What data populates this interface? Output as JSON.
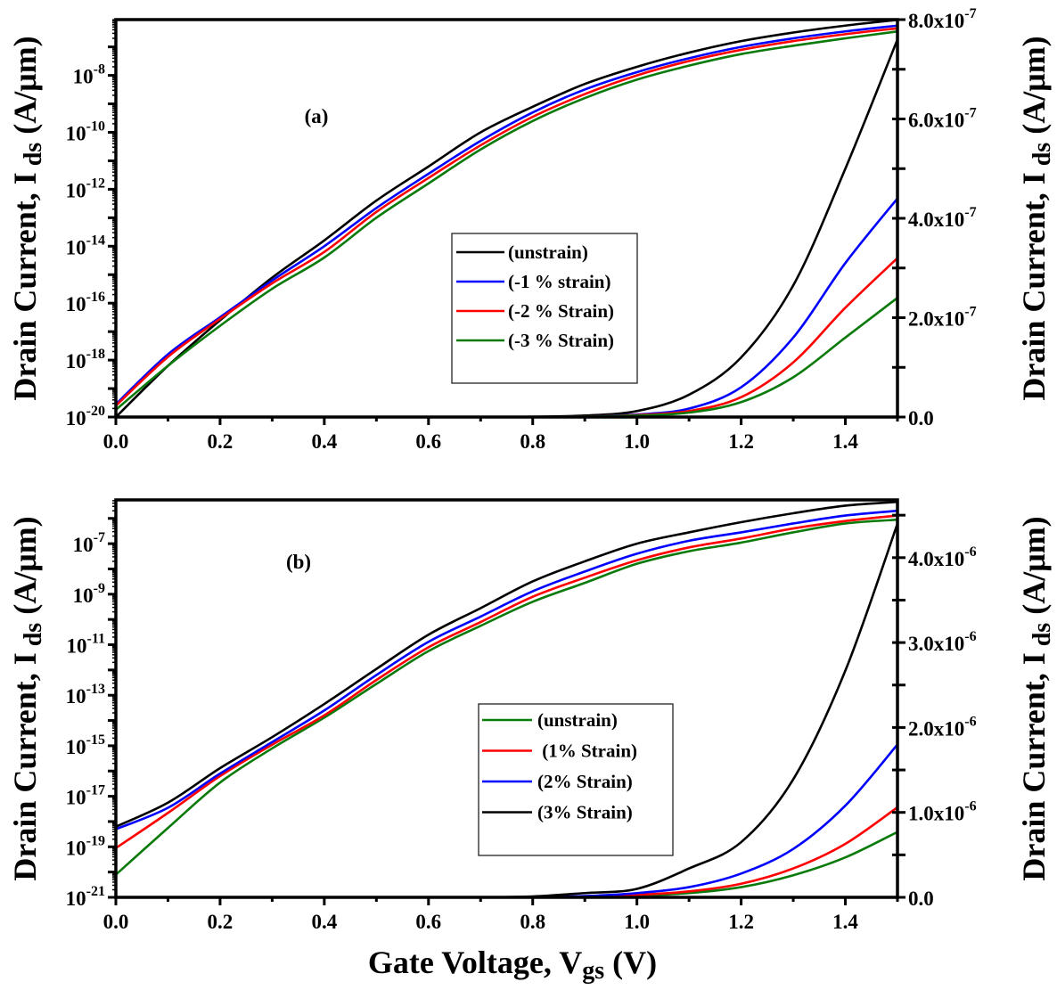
{
  "chart_data": [
    {
      "type": "line",
      "panel_label": "(a)",
      "x": [
        0.0,
        0.1,
        0.2,
        0.3,
        0.4,
        0.5,
        0.6,
        0.7,
        0.8,
        0.9,
        1.0,
        1.1,
        1.2,
        1.3,
        1.4,
        1.5
      ],
      "xlim": [
        0,
        1.5
      ],
      "xticks": [
        "0.0",
        "0.2",
        "0.4",
        "0.6",
        "0.8",
        "1.0",
        "1.2",
        "1.4"
      ],
      "xlabel": "",
      "ylabel_left": {
        "main": "Drain Current, I",
        "sub": "ds",
        "unit": " (A/μm)"
      },
      "ylabel_right": {
        "main": "Drain Current, I",
        "sub": "ds",
        "unit": " (A/μm)"
      },
      "yscale_left": "log",
      "ylim_left": [
        1e-20,
        9.1e-07
      ],
      "yticks_left": [
        1e-20,
        1e-18,
        1e-16,
        1e-14,
        1e-12,
        1e-10,
        1e-08
      ],
      "yscale_right": "linear",
      "ylim_right": [
        0,
        8e-07
      ],
      "yticks_right": [
        {
          "value": 0,
          "label": "0.0"
        },
        {
          "value": 2e-07,
          "label": "2.0x10^-7"
        },
        {
          "value": 4e-07,
          "label": "4.0x10^-7"
        },
        {
          "value": 6e-07,
          "label": "6.0x10^-7"
        },
        {
          "value": 8e-07,
          "label": "8.0x10^-7"
        }
      ],
      "grid": false,
      "legend_position": "center",
      "series": [
        {
          "name": "(unstrain)",
          "color": "#000000",
          "log_values": [
            1e-20,
            6.3e-19,
            2.5e-17,
            7.9e-16,
            1.6e-14,
            4e-13,
            6.3e-12,
            1e-10,
            7.9e-10,
            5e-09,
            2e-08,
            6.3e-08,
            1.6e-07,
            3.2e-07,
            5.6e-07,
            8.9e-07
          ],
          "linear_values": [
            0,
            0,
            0,
            0,
            0,
            0,
            0,
            0,
            5e-10,
            3e-09,
            1.2e-08,
            4.5e-08,
            1.2e-07,
            2.65e-07,
            5e-07,
            7.6e-07
          ]
        },
        {
          "name": "(-1 % strain)",
          "color": "#0000ff",
          "log_values": [
            2.8e-20,
            1.6e-18,
            3.2e-17,
            6.3e-16,
            1e-14,
            2.2e-13,
            3.5e-12,
            5e-11,
            5e-10,
            3.2e-09,
            1.3e-08,
            4e-08,
            1e-07,
            2e-07,
            3.5e-07,
            5.6e-07
          ],
          "linear_values": [
            0,
            0,
            0,
            0,
            0,
            0,
            0,
            0,
            0,
            1e-09,
            5e-09,
            1.7e-08,
            6e-08,
            1.6e-07,
            3.1e-07,
            4.4e-07
          ]
        },
        {
          "name": "(-2 % Strain)",
          "color": "#ff0000",
          "log_values": [
            2.5e-20,
            1.3e-18,
            2.8e-17,
            5e-16,
            6.3e-15,
            1.6e-13,
            2.5e-12,
            3.5e-11,
            3.5e-10,
            2.2e-09,
            1e-08,
            3.2e-08,
            7.9e-08,
            1.6e-07,
            2.8e-07,
            4.5e-07
          ],
          "linear_values": [
            0,
            0,
            0,
            0,
            0,
            0,
            0,
            0,
            0,
            1e-09,
            4e-09,
            1.2e-08,
            4e-08,
            1.1e-07,
            2.2e-07,
            3.2e-07
          ]
        },
        {
          "name": "(-3 % Strain)",
          "color": "#0a7a0a",
          "log_values": [
            1.8e-20,
            6.3e-19,
            1.6e-17,
            3.2e-16,
            4e-15,
            1e-13,
            1.6e-12,
            2.5e-11,
            2.5e-10,
            1.6e-09,
            7.1e-09,
            2.2e-08,
            5.6e-08,
            1.1e-07,
            2e-07,
            3.5e-07
          ],
          "linear_values": [
            0,
            0,
            0,
            0,
            0,
            0,
            0,
            0,
            0,
            1e-09,
            3e-09,
            9e-09,
            3e-08,
            8e-08,
            1.6e-07,
            2.4e-07
          ]
        }
      ]
    },
    {
      "type": "line",
      "panel_label": "(b)",
      "x": [
        0.0,
        0.1,
        0.2,
        0.3,
        0.4,
        0.5,
        0.6,
        0.7,
        0.8,
        0.9,
        1.0,
        1.1,
        1.2,
        1.3,
        1.4,
        1.5
      ],
      "xlim": [
        0,
        1.5
      ],
      "xticks": [
        "0.0",
        "0.2",
        "0.4",
        "0.6",
        "0.8",
        "1.0",
        "1.2",
        "1.4"
      ],
      "xlabel": {
        "main": "Gate Voltage, V",
        "sub": "gs",
        "unit": " (V)"
      },
      "ylabel_left": {
        "main": "Drain Current, I",
        "sub": "ds",
        "unit": " (A/μm)"
      },
      "ylabel_right": {
        "main": "Drain Current, I",
        "sub": "ds",
        "unit": " (A/μm)"
      },
      "yscale_left": "log",
      "ylim_left": [
        1e-21,
        5.4e-06
      ],
      "yticks_left": [
        1e-21,
        1e-19,
        1e-17,
        1e-15,
        1e-13,
        1e-11,
        1e-09,
        1e-07
      ],
      "yscale_right": "linear",
      "ylim_right": [
        0,
        4.68e-06
      ],
      "yticks_right": [
        {
          "value": 0,
          "label": "0.0"
        },
        {
          "value": 1e-06,
          "label": "1.0x10^-6"
        },
        {
          "value": 2e-06,
          "label": "2.0x10^-6"
        },
        {
          "value": 3e-06,
          "label": "3.0x10^-6"
        },
        {
          "value": 4e-06,
          "label": "4.0x10^-6"
        }
      ],
      "grid": false,
      "legend_position": "center",
      "series": [
        {
          "name": "(unstrain)",
          "color": "#0a7a0a",
          "log_values": [
            7.9e-21,
            5.6e-19,
            3.5e-17,
            7.9e-16,
            1.3e-14,
            2.8e-13,
            5.6e-12,
            5.6e-11,
            5e-10,
            2.8e-09,
            1.6e-08,
            5e-08,
            1.1e-07,
            2.8e-07,
            6.3e-07,
            8.9e-07
          ],
          "linear_values": [
            0,
            0,
            0,
            0,
            0,
            0,
            0,
            0,
            0,
            0,
            2e-08,
            5e-08,
            1.2e-07,
            2.6e-07,
            4.7e-07,
            7.7e-07
          ]
        },
        {
          "name": " (1% Strain)",
          "color": "#ff0000",
          "log_values": [
            8.9e-20,
            2.2e-18,
            6.3e-17,
            1.1e-15,
            1.6e-14,
            4e-13,
            7.9e-12,
            7.9e-11,
            7.9e-10,
            4.5e-09,
            2.2e-08,
            7.1e-08,
            1.6e-07,
            4e-07,
            7.9e-07,
            1.3e-06
          ],
          "linear_values": [
            0,
            0,
            0,
            0,
            0,
            0,
            0,
            0,
            0,
            1e-08,
            3e-08,
            7e-08,
            1.6e-07,
            3.4e-07,
            6.3e-07,
            1.06e-06
          ]
        },
        {
          "name": "(2% Strain)",
          "color": "#0000ff",
          "log_values": [
            5e-19,
            3.5e-18,
            7.9e-17,
            1.4e-15,
            2.5e-14,
            6.3e-13,
            1.3e-11,
            1.3e-10,
            1.3e-09,
            7.9e-09,
            4e-08,
            1.3e-07,
            2.8e-07,
            6.3e-07,
            1.3e-06,
            2e-06
          ],
          "linear_values": [
            0,
            0,
            0,
            0,
            0,
            0,
            0,
            0,
            0,
            1.5e-08,
            5e-08,
            1.2e-07,
            2.8e-07,
            5.7e-07,
            1.08e-06,
            1.8e-06
          ]
        },
        {
          "name": "(3% Strain)",
          "color": "#000000",
          "log_values": [
            6.3e-19,
            5.6e-18,
            1.3e-16,
            2.2e-15,
            4.5e-14,
            1.1e-12,
            2.5e-11,
            2.8e-10,
            3.2e-09,
            2e-08,
            1e-07,
            2.8e-07,
            7.1e-07,
            1.6e-06,
            3.2e-06,
            4.5e-06
          ],
          "linear_values": [
            0,
            0,
            0,
            0,
            0,
            0,
            0,
            0,
            1e-08,
            5e-08,
            1e-07,
            3.4e-07,
            6.5e-07,
            1.39e-06,
            2.67e-06,
            4.4e-06
          ]
        }
      ]
    }
  ]
}
